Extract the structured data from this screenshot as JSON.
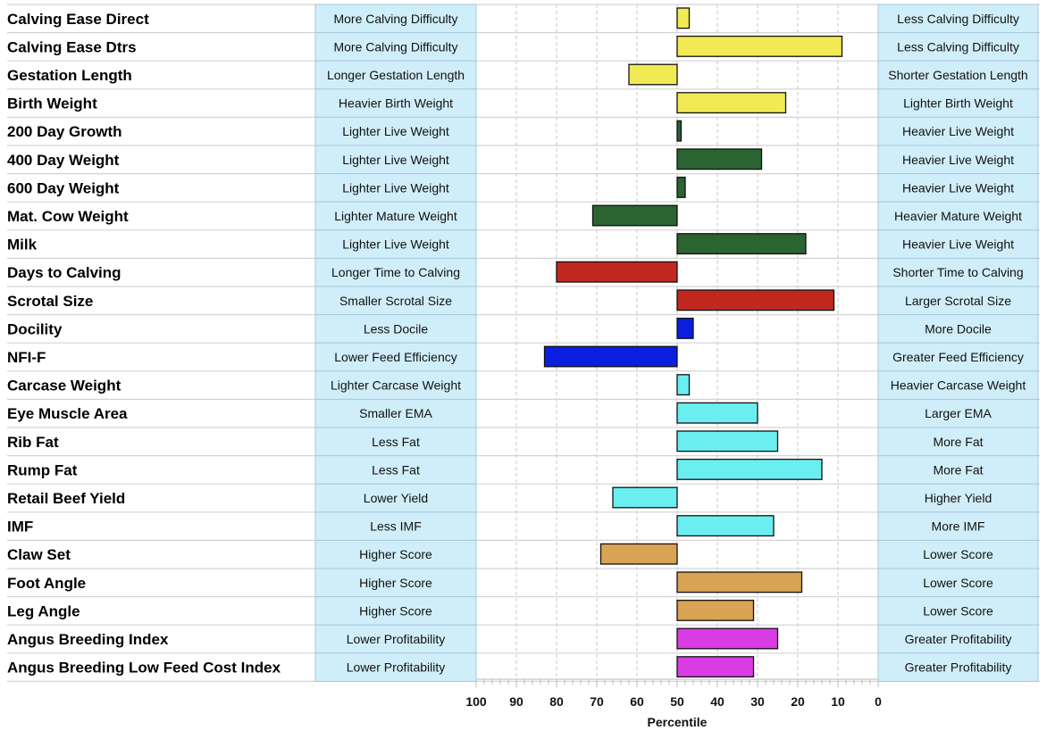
{
  "chart_data": {
    "type": "bar",
    "title": "",
    "xlabel": "Percentile",
    "ylabel": "",
    "xlim": [
      100,
      0
    ],
    "baseline": 50,
    "ticks": [
      100,
      90,
      80,
      70,
      60,
      50,
      40,
      30,
      20,
      10,
      0
    ],
    "grid": true,
    "traits": [
      {
        "name": "Calving Ease Direct",
        "left": "More Calving Difficulty",
        "right": "Less Calving Difficulty",
        "value": 47,
        "color": "#f2ea55"
      },
      {
        "name": "Calving Ease Dtrs",
        "left": "More Calving Difficulty",
        "right": "Less Calving Difficulty",
        "value": 9,
        "color": "#f2ea55"
      },
      {
        "name": "Gestation Length",
        "left": "Longer Gestation Length",
        "right": "Shorter Gestation Length",
        "value": 62,
        "color": "#f2ea55"
      },
      {
        "name": "Birth Weight",
        "left": "Heavier Birth Weight",
        "right": "Lighter Birth Weight",
        "value": 23,
        "color": "#f2ea55"
      },
      {
        "name": "200 Day Growth",
        "left": "Lighter Live Weight",
        "right": "Heavier Live Weight",
        "value": 49,
        "color": "#2b6331"
      },
      {
        "name": "400 Day Weight",
        "left": "Lighter Live Weight",
        "right": "Heavier Live Weight",
        "value": 29,
        "color": "#2b6331"
      },
      {
        "name": "600 Day Weight",
        "left": "Lighter Live Weight",
        "right": "Heavier Live Weight",
        "value": 48,
        "color": "#2b6331"
      },
      {
        "name": "Mat. Cow Weight",
        "left": "Lighter Mature Weight",
        "right": "Heavier Mature Weight",
        "value": 71,
        "color": "#2b6331"
      },
      {
        "name": "Milk",
        "left": "Lighter Live Weight",
        "right": "Heavier Live Weight",
        "value": 18,
        "color": "#2b6331"
      },
      {
        "name": "Days to Calving",
        "left": "Longer Time to Calving",
        "right": "Shorter Time to Calving",
        "value": 80,
        "color": "#c0281f"
      },
      {
        "name": "Scrotal Size",
        "left": "Smaller Scrotal Size",
        "right": "Larger Scrotal Size",
        "value": 11,
        "color": "#c0281f"
      },
      {
        "name": "Docility",
        "left": "Less Docile",
        "right": "More Docile",
        "value": 46,
        "color": "#0b1fe0"
      },
      {
        "name": "NFI-F",
        "left": "Lower Feed Efficiency",
        "right": "Greater Feed Efficiency",
        "value": 83,
        "color": "#0b1fe0"
      },
      {
        "name": "Carcase Weight",
        "left": "Lighter Carcase Weight",
        "right": "Heavier Carcase Weight",
        "value": 47,
        "color": "#6aeef0"
      },
      {
        "name": "Eye Muscle Area",
        "left": "Smaller EMA",
        "right": "Larger EMA",
        "value": 30,
        "color": "#6aeef0"
      },
      {
        "name": "Rib Fat",
        "left": "Less Fat",
        "right": "More Fat",
        "value": 25,
        "color": "#6aeef0"
      },
      {
        "name": "Rump Fat",
        "left": "Less Fat",
        "right": "More Fat",
        "value": 14,
        "color": "#6aeef0"
      },
      {
        "name": "Retail Beef Yield",
        "left": "Lower Yield",
        "right": "Higher Yield",
        "value": 66,
        "color": "#6aeef0"
      },
      {
        "name": "IMF",
        "left": "Less IMF",
        "right": "More IMF",
        "value": 26,
        "color": "#6aeef0"
      },
      {
        "name": "Claw Set",
        "left": "Higher Score",
        "right": "Lower Score",
        "value": 69,
        "color": "#d8a352"
      },
      {
        "name": "Foot Angle",
        "left": "Higher Score",
        "right": "Lower Score",
        "value": 19,
        "color": "#d8a352"
      },
      {
        "name": "Leg Angle",
        "left": "Higher Score",
        "right": "Lower Score",
        "value": 31,
        "color": "#d8a352"
      },
      {
        "name": "Angus Breeding Index",
        "left": "Lower Profitability",
        "right": "Greater Profitability",
        "value": 25,
        "color": "#d93ce3"
      },
      {
        "name": "Angus Breeding Low Feed Cost Index",
        "left": "Lower Profitability",
        "right": "Greater Profitability",
        "value": 31,
        "color": "#d93ce3"
      }
    ]
  },
  "colors": {
    "desc_box_fill": "#d0eef9",
    "desc_box_border": "#a9c9d8",
    "gridline": "#c8c8c8",
    "row_line": "#d4d4d4"
  }
}
